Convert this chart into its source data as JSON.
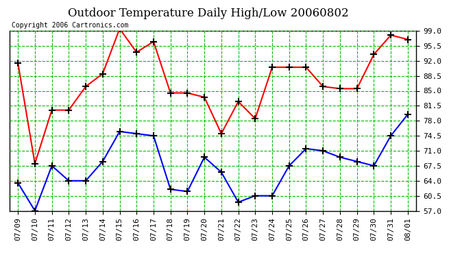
{
  "title": "Outdoor Temperature Daily High/Low 20060802",
  "copyright": "Copyright 2006 Cartronics.com",
  "x_labels": [
    "07/09",
    "07/10",
    "07/11",
    "07/12",
    "07/13",
    "07/14",
    "07/15",
    "07/16",
    "07/17",
    "07/18",
    "07/19",
    "07/20",
    "07/21",
    "07/22",
    "07/23",
    "07/24",
    "07/25",
    "07/26",
    "07/27",
    "07/28",
    "07/29",
    "07/30",
    "07/31",
    "08/01"
  ],
  "high_values": [
    91.5,
    68.0,
    80.5,
    80.5,
    86.0,
    89.0,
    99.5,
    94.0,
    96.5,
    84.5,
    84.5,
    83.5,
    75.0,
    82.5,
    78.5,
    90.5,
    90.5,
    90.5,
    86.0,
    85.5,
    85.5,
    93.5,
    98.0,
    97.0
  ],
  "low_values": [
    63.5,
    57.0,
    67.5,
    64.0,
    64.0,
    68.5,
    75.5,
    75.0,
    74.5,
    62.0,
    61.5,
    69.5,
    66.0,
    59.0,
    60.5,
    60.5,
    67.5,
    71.5,
    71.0,
    69.5,
    68.5,
    67.5,
    74.5,
    79.5
  ],
  "high_color": "#ff0000",
  "low_color": "#0000ff",
  "bg_color": "#ffffff",
  "plot_bg_color": "#ffffff",
  "grid_color": "#00bb00",
  "border_color": "#000000",
  "title_color": "#000000",
  "marker": "+",
  "marker_color": "#000000",
  "marker_size": 7,
  "y_min": 57.0,
  "y_max": 99.0,
  "y_ticks": [
    57.0,
    60.5,
    64.0,
    67.5,
    71.0,
    74.5,
    78.0,
    81.5,
    85.0,
    88.5,
    92.0,
    95.5,
    99.0
  ],
  "title_fontsize": 12,
  "copyright_fontsize": 7,
  "tick_fontsize": 8,
  "line_width": 1.5
}
